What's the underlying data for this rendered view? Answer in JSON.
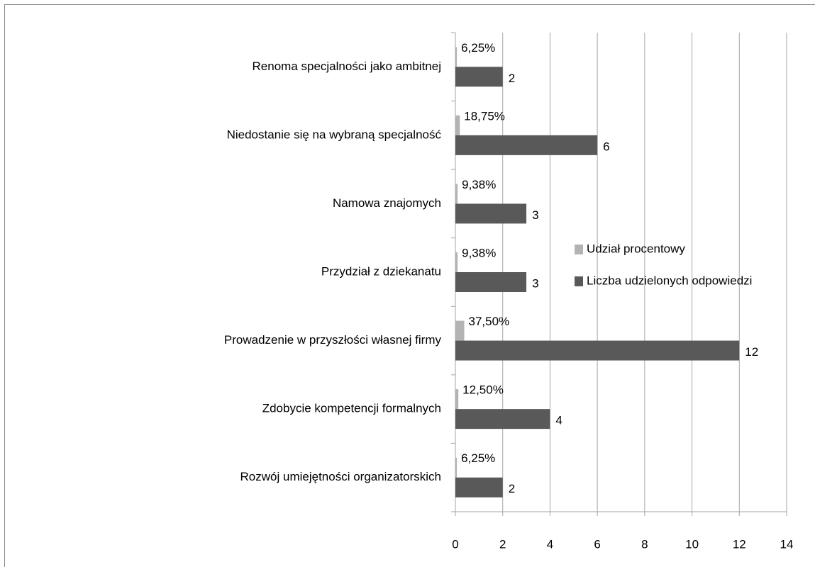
{
  "chart_data": {
    "type": "bar",
    "orientation": "horizontal",
    "categories": [
      "Renoma specjalności jako ambitnej",
      "Niedostanie się na wybraną specjalność",
      "Namowa znajomych",
      "Przydział z dziekanatu",
      "Prowadzenie w przyszłości własnej firmy",
      "Zdobycie kompetencji formalnych",
      "Rozwój umiejętności organizatorskich"
    ],
    "series": [
      {
        "name": "Udział procentowy",
        "color": "#b3b3b3",
        "values": [
          0.0625,
          0.1875,
          0.09375,
          0.09375,
          0.375,
          0.125,
          0.0625
        ],
        "value_labels": [
          "6,25%",
          "18,75%",
          "9,38%",
          "9,38%",
          "37,50%",
          "12,50%",
          "6,25%"
        ]
      },
      {
        "name": "Liczba udzielonych odpowiedzi",
        "color": "#595959",
        "values": [
          2,
          6,
          3,
          3,
          12,
          4,
          2
        ]
      }
    ],
    "xlim": [
      0,
      14
    ],
    "xticks": [
      0,
      2,
      4,
      6,
      8,
      10,
      12,
      14
    ],
    "grid": true,
    "legend": "right"
  }
}
